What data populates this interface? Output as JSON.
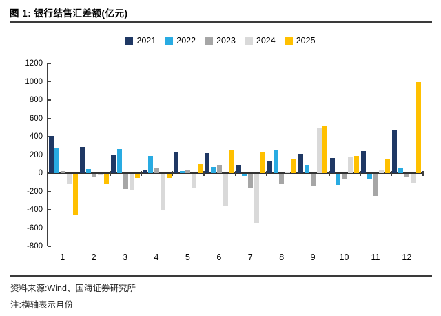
{
  "header": {
    "title": "图 1: 银行结售汇差额(亿元)"
  },
  "footer": {
    "source": "资料来源:Wind、国海证券研究所",
    "note": "注:横轴表示月份"
  },
  "chart_data": {
    "type": "bar",
    "title": "银行结售汇差额(亿元)",
    "xlabel": "月份",
    "ylabel": "亿元",
    "categories": [
      "1",
      "2",
      "3",
      "4",
      "5",
      "6",
      "7",
      "8",
      "9",
      "10",
      "11",
      "12"
    ],
    "series": [
      {
        "name": "2021",
        "color": "#1F3864",
        "values": [
          410,
          285,
          205,
          30,
          230,
          220,
          90,
          135,
          210,
          165,
          245,
          465
        ]
      },
      {
        "name": "2022",
        "color": "#29ABE2",
        "values": [
          280,
          45,
          265,
          185,
          20,
          70,
          -25,
          250,
          90,
          -125,
          -55,
          60
        ]
      },
      {
        "name": "2023",
        "color": "#A6A6A6",
        "values": [
          25,
          -40,
          -165,
          55,
          30,
          90,
          -150,
          -110,
          -140,
          -60,
          -240,
          -40
        ]
      },
      {
        "name": "2024",
        "color": "#D9D9D9",
        "values": [
          -105,
          -15,
          -175,
          -400,
          -150,
          -350,
          -540,
          15,
          490,
          175,
          35,
          -100
        ]
      },
      {
        "name": "2025",
        "color": "#FFC000",
        "values": [
          -455,
          -115,
          -50,
          -50,
          100,
          250,
          225,
          150,
          510,
          185,
          150,
          1000
        ]
      }
    ],
    "ylim": [
      -800,
      1200
    ],
    "ytick_step": 200,
    "yticks": [
      1200,
      1000,
      800,
      600,
      400,
      200,
      0,
      -200,
      -400,
      -600,
      -800
    ],
    "grid": false,
    "legend_position": "top",
    "note": "横轴表示月份"
  }
}
